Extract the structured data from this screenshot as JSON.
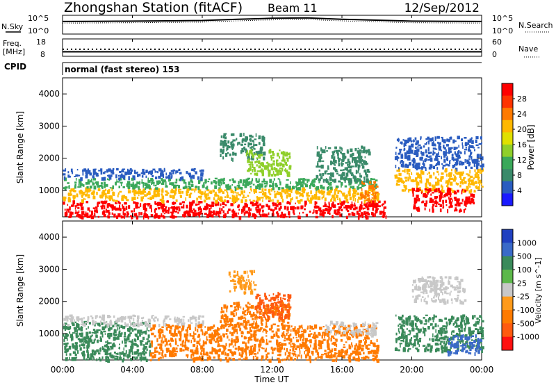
{
  "header": {
    "station": "Zhongshan Station (fitACF)",
    "beam": "Beam 11",
    "date": "12/Sep/2012"
  },
  "sky_panel": {
    "left_label": "N.Sky",
    "right_label": "N.Search",
    "left_ticks": [
      "10^5",
      "10^0"
    ],
    "right_ticks": [
      "10^5",
      "10^0"
    ]
  },
  "freq_panel": {
    "left_label_1": "Freq.",
    "left_label_2": "[MHz]",
    "right_label": "Nave",
    "left_ticks": [
      "18",
      "8"
    ],
    "right_ticks": [
      "60",
      "0"
    ]
  },
  "cpid": {
    "label": "CPID",
    "mode": "normal (fast stereo) 153"
  },
  "power_panel": {
    "ylabel": "Slant Range [km]",
    "yticks": [
      "4000",
      "3000",
      "2000",
      "1000"
    ],
    "colorbar_label": "Power [dB]",
    "colorbar_ticks": [
      "28",
      "24",
      "20",
      "16",
      "12",
      "8",
      "4"
    ],
    "colors": [
      "#ff0000",
      "#ff3300",
      "#ff7a00",
      "#ffb800",
      "#e0e000",
      "#8fcf2a",
      "#3aa85a",
      "#3a8a6a",
      "#2a5cc0",
      "#1a1aff"
    ]
  },
  "velocity_panel": {
    "ylabel": "Slant Range [km]",
    "yticks": [
      "4000",
      "3000",
      "2000",
      "1000"
    ],
    "colorbar_label": "Velocity [m s^-1]",
    "colorbar_ticks": [
      "1000",
      "500",
      "100",
      "25",
      "-25",
      "-100",
      "-500",
      "-1000"
    ],
    "colors": [
      "#2040c0",
      "#3a6ac8",
      "#3a8a5a",
      "#5cb84a",
      "#c8c8c8",
      "#ff9a1a",
      "#ff7a00",
      "#ff5a10",
      "#ff1010"
    ]
  },
  "xaxis": {
    "label": "Time UT",
    "ticks": [
      "00:00",
      "04:00",
      "08:00",
      "12:00",
      "16:00",
      "20:00",
      "00:00"
    ]
  },
  "chart_data": {
    "type": "heatmap",
    "title": "Zhongshan Station (fitACF) Beam 11 12/Sep/2012",
    "xlabel": "Time UT",
    "ylabel": "Slant Range [km]",
    "xlim": [
      0,
      24
    ],
    "ylim": [
      180,
      4500
    ],
    "power_range_db": [
      0,
      30
    ],
    "velocity_range": [
      -1000,
      1000
    ],
    "power_patches": [
      {
        "t0": 0.0,
        "t1": 18.5,
        "r0": 200,
        "r1": 700,
        "level": 28
      },
      {
        "t0": 0.0,
        "t1": 18.0,
        "r0": 700,
        "r1": 1100,
        "level": 20
      },
      {
        "t0": 0.0,
        "t1": 18.0,
        "r0": 1100,
        "r1": 1400,
        "level": 10
      },
      {
        "t0": 0.0,
        "t1": 8.0,
        "r0": 1400,
        "r1": 1700,
        "level": 6
      },
      {
        "t0": 9.0,
        "t1": 11.5,
        "r0": 2000,
        "r1": 2800,
        "level": 8
      },
      {
        "t0": 10.5,
        "t1": 13.0,
        "r0": 1500,
        "r1": 2300,
        "level": 14
      },
      {
        "t0": 14.5,
        "t1": 17.5,
        "r0": 1300,
        "r1": 2400,
        "level": 8
      },
      {
        "t0": 17.0,
        "t1": 18.0,
        "r0": 700,
        "r1": 1300,
        "level": 22
      },
      {
        "t0": 19.0,
        "t1": 24.0,
        "r0": 1000,
        "r1": 1700,
        "level": 20
      },
      {
        "t0": 20.0,
        "t1": 23.5,
        "r0": 400,
        "r1": 1100,
        "level": 28
      },
      {
        "t0": 19.0,
        "t1": 24.0,
        "r0": 1700,
        "r1": 2700,
        "level": 6
      }
    ],
    "velocity_patches": [
      {
        "t0": 0.0,
        "t1": 5.0,
        "r0": 200,
        "r1": 1400,
        "level": 100
      },
      {
        "t0": 0.0,
        "t1": 8.0,
        "r0": 1300,
        "r1": 1600,
        "level": 0
      },
      {
        "t0": 5.0,
        "t1": 18.0,
        "r0": 200,
        "r1": 1300,
        "level": -300
      },
      {
        "t0": 9.0,
        "t1": 13.0,
        "r0": 1300,
        "r1": 2000,
        "level": -500
      },
      {
        "t0": 11.0,
        "t1": 13.0,
        "r0": 1500,
        "r1": 2300,
        "level": -800
      },
      {
        "t0": 9.5,
        "t1": 11.0,
        "r0": 2300,
        "r1": 3000,
        "level": -60
      },
      {
        "t0": 15.0,
        "t1": 18.0,
        "r0": 1000,
        "r1": 1400,
        "level": 0
      },
      {
        "t0": 19.0,
        "t1": 24.0,
        "r0": 500,
        "r1": 1600,
        "level": 200
      },
      {
        "t0": 22.0,
        "t1": 24.0,
        "r0": 400,
        "r1": 1000,
        "level": 700
      },
      {
        "t0": 20.0,
        "t1": 23.0,
        "r0": 2000,
        "r1": 2800,
        "level": 0
      }
    ],
    "n_sky": {
      "x": [
        0,
        4,
        8,
        10,
        12,
        14,
        16,
        20,
        24
      ],
      "y": [
        3.5,
        3.6,
        3.8,
        4.2,
        4.5,
        4.6,
        4.2,
        3.6,
        3.5
      ]
    },
    "n_search": {
      "x": [
        0,
        4,
        8,
        10,
        12,
        14,
        16,
        20,
        24
      ],
      "y": [
        3.0,
        3.1,
        3.3,
        3.7,
        4.0,
        4.1,
        3.7,
        3.1,
        3.0
      ]
    },
    "freq_mhz": 10.5,
    "nave": 25
  }
}
